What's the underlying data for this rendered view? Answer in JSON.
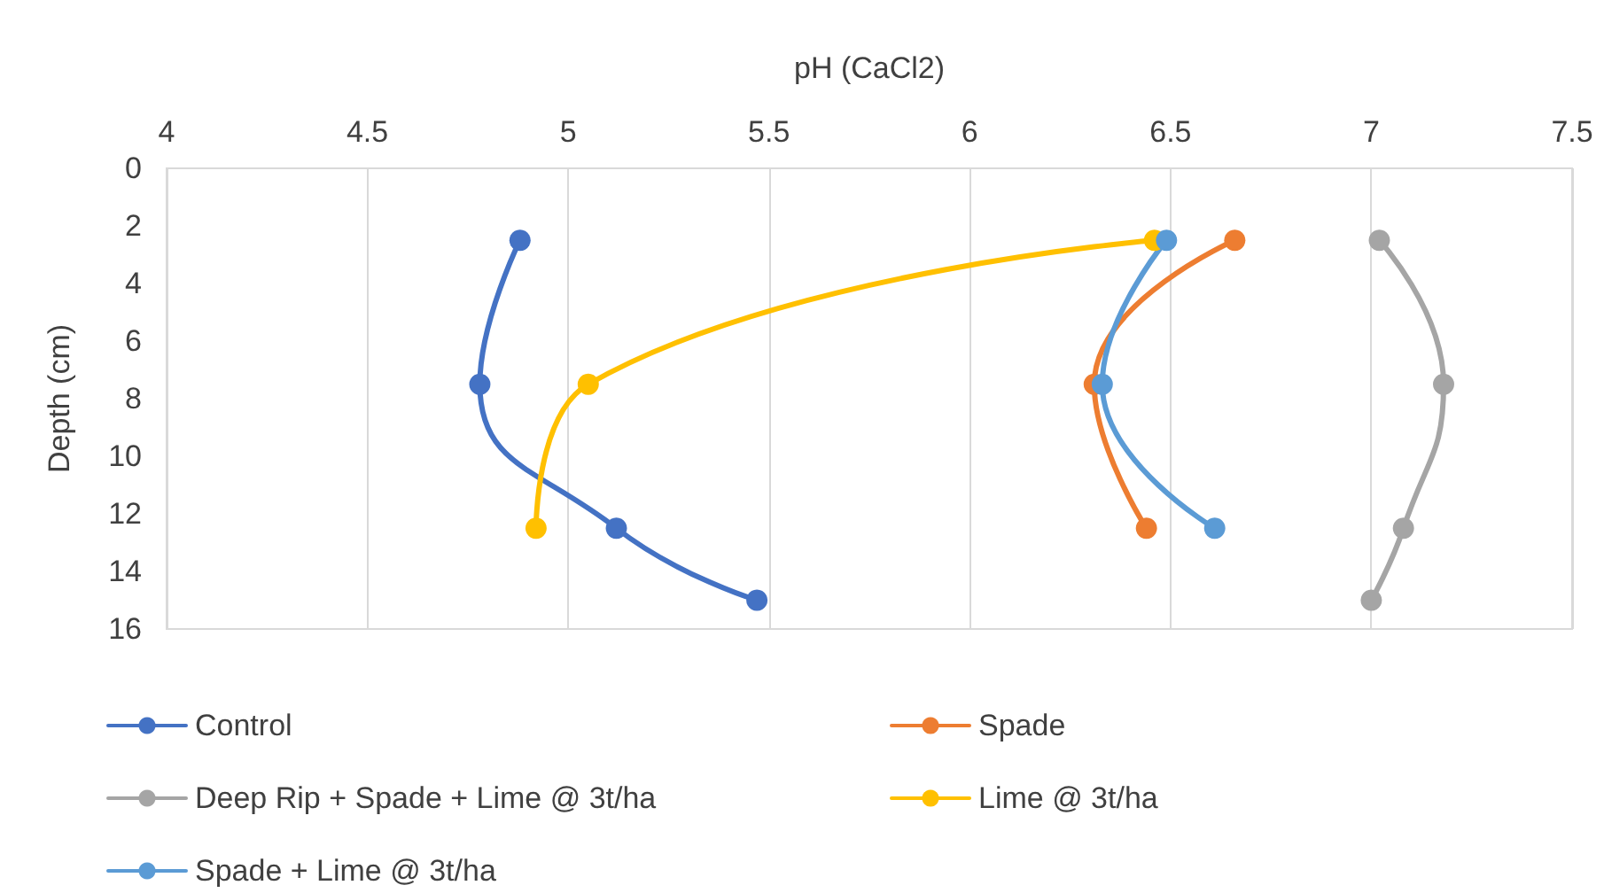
{
  "chart_data": {
    "type": "line",
    "xlabel": "pH (CaCl2)",
    "ylabel": "Depth (cm)",
    "xlim": [
      4,
      7.5
    ],
    "xticks": [
      4,
      4.5,
      5,
      5.5,
      6,
      6.5,
      7,
      7.5
    ],
    "ylim": [
      16,
      0
    ],
    "yticks": [
      0,
      2,
      4,
      6,
      8,
      10,
      12,
      14,
      16
    ],
    "grid": "x",
    "legend": "bottom",
    "marker": "circle",
    "line_style": "solid",
    "series": [
      {
        "name": "Control",
        "color": "#4472c4",
        "x": [
          4.88,
          4.78,
          5.12,
          5.47
        ],
        "values": [
          2.5,
          7.5,
          12.5,
          15
        ]
      },
      {
        "name": "Spade",
        "color": "#ed7d31",
        "x": [
          6.66,
          6.31,
          6.44
        ],
        "values": [
          2.5,
          7.5,
          12.5
        ]
      },
      {
        "name": "Deep Rip + Spade + Lime @ 3t/ha",
        "color": "#a5a5a5",
        "x": [
          7.02,
          7.18,
          7.08,
          7.0
        ],
        "values": [
          2.5,
          7.5,
          12.5,
          15
        ]
      },
      {
        "name": "Lime @ 3t/ha",
        "color": "#ffc000",
        "x": [
          6.46,
          5.05,
          4.92
        ],
        "values": [
          2.5,
          7.5,
          12.5
        ]
      },
      {
        "name": "Spade + Lime @ 3t/ha",
        "color": "#5b9bd5",
        "x": [
          6.49,
          6.33,
          6.61
        ],
        "values": [
          2.5,
          7.5,
          12.5
        ]
      }
    ]
  }
}
